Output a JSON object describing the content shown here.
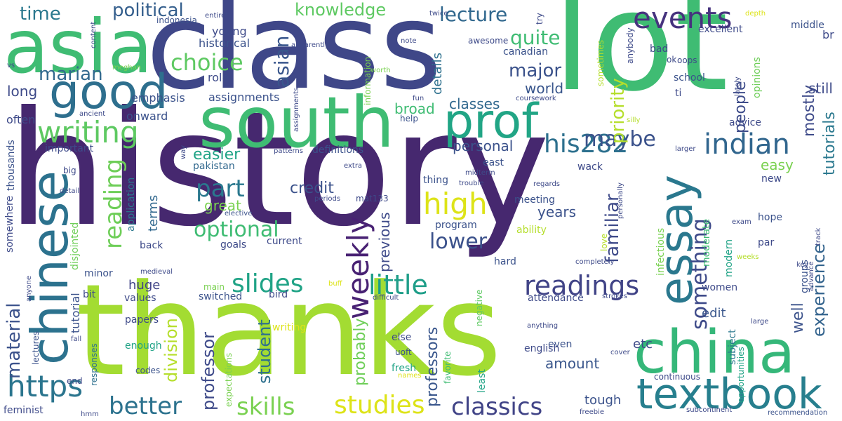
{
  "words": [
    {
      "text": "history",
      "color": "#46286f"
    },
    {
      "text": "thanks",
      "color": "#a3dc32"
    },
    {
      "text": "lot",
      "color": "#3fbc73"
    },
    {
      "text": "class",
      "color": "#3f4788"
    },
    {
      "text": "asia",
      "color": "#3fbc73"
    },
    {
      "text": "south",
      "color": "#3fbc73"
    },
    {
      "text": "china",
      "color": "#35b779"
    },
    {
      "text": "good",
      "color": "#2e6f8e"
    },
    {
      "text": "prof",
      "color": "#21a585"
    },
    {
      "text": "chinese",
      "color": "#2c728e"
    },
    {
      "text": "textbook",
      "color": "#277f8e"
    },
    {
      "text": "essay",
      "color": "#2a788e"
    },
    {
      "text": "events",
      "color": "#46337e"
    },
    {
      "text": "writing",
      "color": "#5ec962"
    },
    {
      "text": "indian",
      "color": "#31668e"
    },
    {
      "text": "his282",
      "color": "#2d708e"
    },
    {
      "text": "weekly",
      "color": "#482173"
    },
    {
      "text": "high",
      "color": "#dde318"
    },
    {
      "text": "https",
      "color": "#2b758e"
    },
    {
      "text": "classics",
      "color": "#414487"
    },
    {
      "text": "studies",
      "color": "#dde318"
    },
    {
      "text": "skills",
      "color": "#7ad151"
    },
    {
      "text": "better",
      "color": "#2c728e"
    },
    {
      "text": "slides",
      "color": "#20a386"
    },
    {
      "text": "little",
      "color": "#1f9e89"
    },
    {
      "text": "readings",
      "color": "#414487"
    },
    {
      "text": "choice",
      "color": "#5ec962"
    },
    {
      "text": "part",
      "color": "#2a788e"
    },
    {
      "text": "lower",
      "color": "#3b518b"
    },
    {
      "text": "something",
      "color": "#3e4a89"
    },
    {
      "text": "reading",
      "color": "#6ece58"
    },
    {
      "text": "optional",
      "color": "#3fbc73"
    },
    {
      "text": "maybe",
      "color": "#3b528b"
    },
    {
      "text": "lecture",
      "color": "#31688e"
    },
    {
      "text": "asian",
      "color": "#39568c"
    },
    {
      "text": "political",
      "color": "#355f8d"
    },
    {
      "text": "knowledge",
      "color": "#5ec962"
    },
    {
      "text": "time",
      "color": "#2a788e"
    },
    {
      "text": "quite",
      "color": "#3fbc73"
    },
    {
      "text": "major",
      "color": "#3b528b"
    },
    {
      "text": "marian",
      "color": "#31688e"
    },
    {
      "text": "familiar",
      "color": "#3e4a89"
    },
    {
      "text": "priority",
      "color": "#b5de2b"
    },
    {
      "text": "material",
      "color": "#3b528b"
    },
    {
      "text": "division",
      "color": "#b5de2b"
    },
    {
      "text": "experience",
      "color": "#33638d"
    },
    {
      "text": "tutorials",
      "color": "#2a788e"
    },
    {
      "text": "mostly",
      "color": "#3e4a89"
    },
    {
      "text": "people",
      "color": "#3e4c8a"
    },
    {
      "text": "still",
      "color": "#3e4a89"
    },
    {
      "text": "student",
      "color": "#2d708e"
    },
    {
      "text": "probably",
      "color": "#6ece58"
    },
    {
      "text": "professors",
      "color": "#39568c"
    },
    {
      "text": "professor",
      "color": "#3e4a89"
    },
    {
      "text": "amount",
      "color": "#39568c"
    },
    {
      "text": "credit",
      "color": "#3b528b"
    },
    {
      "text": "great",
      "color": "#7ad151"
    },
    {
      "text": "easier",
      "color": "#20a386"
    },
    {
      "text": "personal",
      "color": "#3b528b"
    },
    {
      "text": "details",
      "color": "#2d708e"
    },
    {
      "text": "broad",
      "color": "#3fbc73"
    },
    {
      "text": "classes",
      "color": "#31688e"
    },
    {
      "text": "world",
      "color": "#39568c"
    },
    {
      "text": "easy",
      "color": "#7ad151"
    },
    {
      "text": "years",
      "color": "#3b528b"
    },
    {
      "text": "previous",
      "color": "#3e4a89"
    },
    {
      "text": "edit",
      "color": "#39568c"
    },
    {
      "text": "well",
      "color": "#3b528b"
    },
    {
      "text": "tough",
      "color": "#3b528b"
    },
    {
      "text": "etc",
      "color": "#3e4a89"
    },
    {
      "text": "huge",
      "color": "#414487"
    },
    {
      "text": "terms",
      "color": "#31688e"
    },
    {
      "text": "long",
      "color": "#3e4a89"
    },
    {
      "text": "often",
      "color": "#3e4a89"
    },
    {
      "text": "tutorial",
      "color": "#3b528b"
    },
    {
      "text": "young",
      "color": "#3e4a89"
    },
    {
      "text": "historical",
      "color": "#3b528b"
    },
    {
      "text": "role",
      "color": "#3e4a89"
    },
    {
      "text": "assignments",
      "color": "#3b528b"
    },
    {
      "text": "emphasis",
      "color": "#3b528b"
    },
    {
      "text": "onward",
      "color": "#3b528b"
    },
    {
      "text": "important",
      "color": "#3e4a89"
    },
    {
      "text": "definitions",
      "color": "#3b528b"
    },
    {
      "text": "pakistan",
      "color": "#31688e"
    },
    {
      "text": "application",
      "color": "#2a788e"
    },
    {
      "text": "thousands",
      "color": "#3b528b"
    },
    {
      "text": "somewhere",
      "color": "#3e4a89"
    },
    {
      "text": "disjointed",
      "color": "#6ece58"
    },
    {
      "text": "goals",
      "color": "#3e4a89"
    },
    {
      "text": "current",
      "color": "#3e4a89"
    },
    {
      "text": "back",
      "color": "#3e4a89"
    },
    {
      "text": "bit",
      "color": "#3e4a89"
    },
    {
      "text": "minor",
      "color": "#3b528b"
    },
    {
      "text": "values",
      "color": "#3e4a89"
    },
    {
      "text": "switched",
      "color": "#3b528b"
    },
    {
      "text": "main",
      "color": "#7ad151"
    },
    {
      "text": "bird",
      "color": "#3e4a89"
    },
    {
      "text": "papers",
      "color": "#3e4a89"
    },
    {
      "text": "enough",
      "color": "#20a386"
    },
    {
      "text": "writing",
      "color": "#dde318"
    },
    {
      "text": "lectures",
      "color": "#3b528b"
    },
    {
      "text": "responses",
      "color": "#2d708e"
    },
    {
      "text": "end",
      "color": "#3e4a89"
    },
    {
      "text": "codes",
      "color": "#3b528b"
    },
    {
      "text": "feminist",
      "color": "#3e4a89"
    },
    {
      "text": "fresh",
      "color": "#20a386"
    },
    {
      "text": "expectations",
      "color": "#7ad151"
    },
    {
      "text": "favorite",
      "color": "#3fbc73"
    },
    {
      "text": "else",
      "color": "#3e4a89"
    },
    {
      "text": "uoft",
      "color": "#3b528b"
    },
    {
      "text": "even",
      "color": "#3b528b"
    },
    {
      "text": "english",
      "color": "#3e4a89"
    },
    {
      "text": "least",
      "color": "#20a386"
    },
    {
      "text": "hard",
      "color": "#3b528b"
    },
    {
      "text": "negative",
      "color": "#5ec962"
    },
    {
      "text": "attendance",
      "color": "#3e4a89"
    },
    {
      "text": "program",
      "color": "#3b528b"
    },
    {
      "text": "ability",
      "color": "#b5de2b"
    },
    {
      "text": "meeting",
      "color": "#3b528b"
    },
    {
      "text": "love",
      "color": "#b5de2b"
    },
    {
      "text": "mat133",
      "color": "#3e4a89"
    },
    {
      "text": "thing",
      "color": "#3b528b"
    },
    {
      "text": "east",
      "color": "#3b528b"
    },
    {
      "text": "wack",
      "color": "#3e4a89"
    },
    {
      "text": "bad",
      "color": "#3e4a89"
    },
    {
      "text": "school",
      "color": "#3b528b"
    },
    {
      "text": "ti",
      "color": "#3e4a89"
    },
    {
      "text": "excellent",
      "color": "#3e4a89"
    },
    {
      "text": "middle",
      "color": "#3b528b"
    },
    {
      "text": "br",
      "color": "#3e4a89"
    },
    {
      "text": "advice",
      "color": "#3e4a89"
    },
    {
      "text": "opinions",
      "color": "#6ece58"
    },
    {
      "text": "new",
      "color": "#3e4a89"
    },
    {
      "text": "hope",
      "color": "#3b528b"
    },
    {
      "text": "par",
      "color": "#3e4a89"
    },
    {
      "text": "modern",
      "color": "#20a386"
    },
    {
      "text": "moderate",
      "color": "#3fbc73"
    },
    {
      "text": "infectious",
      "color": "#7ad151"
    },
    {
      "text": "women",
      "color": "#3e4a89"
    },
    {
      "text": "groups",
      "color": "#3b528b"
    },
    {
      "text": "subject",
      "color": "#2a788e"
    },
    {
      "text": "continuous",
      "color": "#3e4a89"
    },
    {
      "text": "opportunities",
      "color": "#20a386"
    },
    {
      "text": "canadian",
      "color": "#3b528b"
    },
    {
      "text": "awesome",
      "color": "#3e4a89"
    },
    {
      "text": "anybody",
      "color": "#3e4a89"
    },
    {
      "text": "sometimes",
      "color": "#b5de2b"
    },
    {
      "text": "ok",
      "color": "#3e4a89"
    },
    {
      "text": "oops",
      "color": "#3e4a89"
    },
    {
      "text": "content",
      "color": "#3e4a89"
    },
    {
      "text": "entirety",
      "color": "#3e4a89"
    },
    {
      "text": "indonesia",
      "color": "#3b528b"
    },
    {
      "text": "apparently",
      "color": "#3e4a89"
    },
    {
      "text": "twice",
      "color": "#3e4a89"
    },
    {
      "text": "note",
      "color": "#3e4a89"
    },
    {
      "text": "information",
      "color": "#7ad151"
    },
    {
      "text": "worth",
      "color": "#7ad151"
    },
    {
      "text": "meghan",
      "color": "#7ad151"
    },
    {
      "text": "vs",
      "color": "#3e4a89"
    },
    {
      "text": "ancient",
      "color": "#3e4a89"
    },
    {
      "text": "assignments",
      "color": "#3e4a89"
    },
    {
      "text": "coursework",
      "color": "#3e4a89"
    },
    {
      "text": "fun",
      "color": "#3e4a89"
    },
    {
      "text": "help",
      "color": "#3b528b"
    },
    {
      "text": "try",
      "color": "#3e4a89"
    },
    {
      "text": "depth",
      "color": "#dde318"
    },
    {
      "text": "lately",
      "color": "#3e4a89"
    },
    {
      "text": "silly",
      "color": "#b5de2b"
    },
    {
      "text": "larger",
      "color": "#3e4a89"
    },
    {
      "text": "way",
      "color": "#3e4a89"
    },
    {
      "text": "patterns",
      "color": "#3e4a89"
    },
    {
      "text": "extra",
      "color": "#3e4a89"
    },
    {
      "text": "midterm",
      "color": "#3e4a89"
    },
    {
      "text": "trouble",
      "color": "#3e4a89"
    },
    {
      "text": "regards",
      "color": "#3e4a89"
    },
    {
      "text": "personally",
      "color": "#3e4a89"
    },
    {
      "text": "periods",
      "color": "#3e4a89"
    },
    {
      "text": "detail",
      "color": "#3e4a89"
    },
    {
      "text": "elective",
      "color": "#3b528b"
    },
    {
      "text": "big",
      "color": "#3e4a89"
    },
    {
      "text": "completely",
      "color": "#3e4a89"
    },
    {
      "text": "exam",
      "color": "#3e4a89"
    },
    {
      "text": "track",
      "color": "#3e4a89"
    },
    {
      "text": "weeks",
      "color": "#b5de2b"
    },
    {
      "text": "key",
      "color": "#3e4a89"
    },
    {
      "text": "advance",
      "color": "#3e4a89"
    },
    {
      "text": "large",
      "color": "#3e4a89"
    },
    {
      "text": "cover",
      "color": "#3e4a89"
    },
    {
      "text": "anything",
      "color": "#3e4a89"
    },
    {
      "text": "strokes",
      "color": "#3e4a89"
    },
    {
      "text": "difficult",
      "color": "#3e4a89"
    },
    {
      "text": "buff",
      "color": "#dde318"
    },
    {
      "text": "medieval",
      "color": "#3e4a89"
    },
    {
      "text": "anyone",
      "color": "#3e4a89"
    },
    {
      "text": "fall",
      "color": "#3e4a89"
    },
    {
      "text": "names",
      "color": "#dde318"
    },
    {
      "text": "freebie",
      "color": "#3e4a89"
    },
    {
      "text": "subcontinent",
      "color": "#3e4a89"
    },
    {
      "text": "recommendation",
      "color": "#3b528b"
    },
    {
      "text": "hmm",
      "color": "#3e4a89"
    }
  ]
}
